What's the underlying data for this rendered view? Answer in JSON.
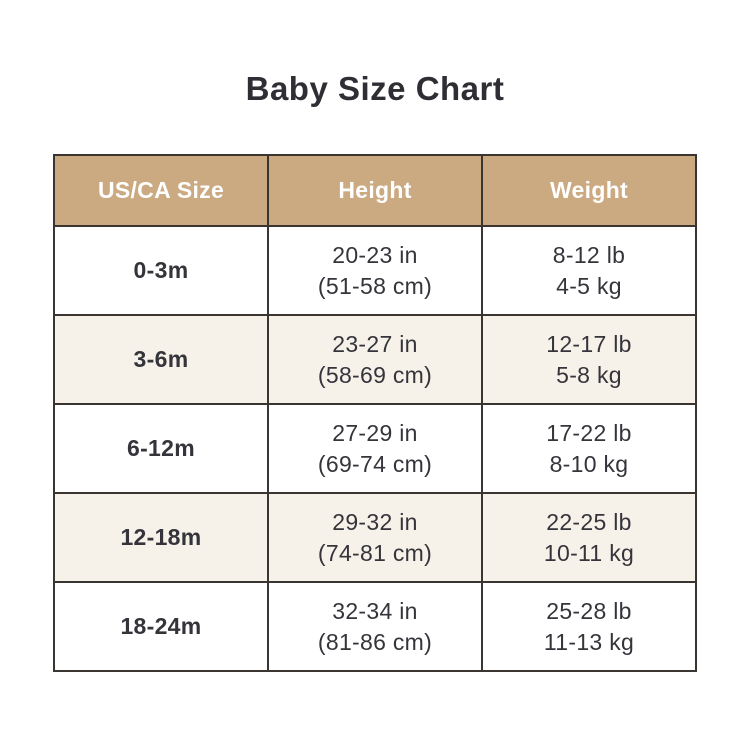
{
  "chart_data": {
    "type": "table",
    "title": "Baby Size Chart",
    "columns": [
      "US/CA Size",
      "Height",
      "Weight"
    ],
    "rows": [
      {
        "size": "0-3m",
        "height_in": "20-23 in",
        "height_cm": "(51-58 cm)",
        "weight_lb": "8-12 lb",
        "weight_kg": "4-5 kg"
      },
      {
        "size": "3-6m",
        "height_in": "23-27 in",
        "height_cm": "(58-69 cm)",
        "weight_lb": "12-17 lb",
        "weight_kg": "5-8 kg"
      },
      {
        "size": "6-12m",
        "height_in": "27-29 in",
        "height_cm": "(69-74 cm)",
        "weight_lb": "17-22 lb",
        "weight_kg": "8-10 kg"
      },
      {
        "size": "12-18m",
        "height_in": "29-32 in",
        "height_cm": "(74-81 cm)",
        "weight_lb": "22-25 lb",
        "weight_kg": "10-11 kg"
      },
      {
        "size": "18-24m",
        "height_in": "32-34 in",
        "height_cm": "(81-86 cm)",
        "weight_lb": "25-28 lb",
        "weight_kg": "11-13 kg"
      }
    ],
    "layout": {
      "legend": "none",
      "grid": "full cell borders",
      "striping": "even data rows cream, odd white",
      "header_bg": "#cbaa82",
      "header_text": "#ffffff",
      "row_alt_bg": "#f6f2ea",
      "border_color": "#3a3531",
      "text_color": "#35343a"
    }
  }
}
